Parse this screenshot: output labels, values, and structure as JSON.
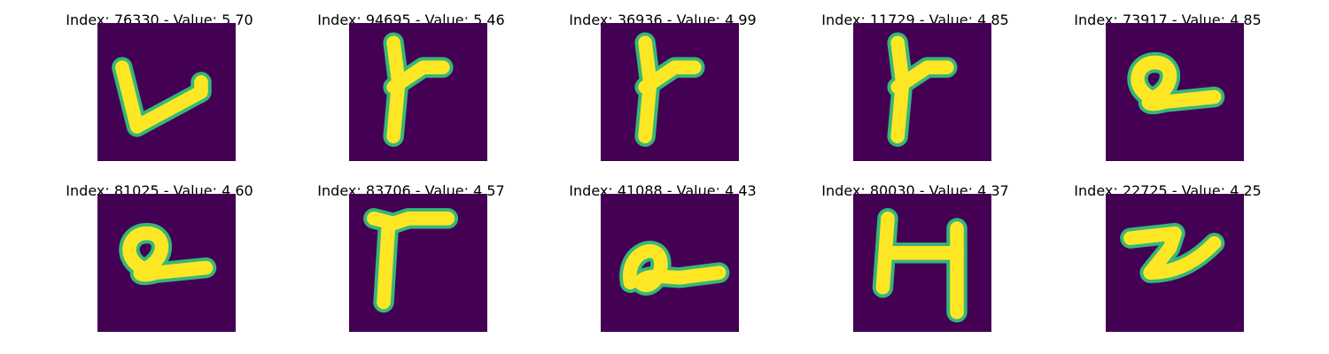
{
  "chart_data": {
    "type": "image-grid",
    "colors": {
      "background": "#440154",
      "stroke": "#fde725",
      "edge": "#35b779"
    },
    "panels": [
      {
        "title": "Index: 76330 - Value: 5.70",
        "glyph": "v-shape"
      },
      {
        "title": "Index: 94695 - Value: 5.46",
        "glyph": "forked-stroke"
      },
      {
        "title": "Index: 36936 - Value: 4.99",
        "glyph": "forked-stroke"
      },
      {
        "title": "Index: 11729 - Value: 4.85",
        "glyph": "forked-stroke"
      },
      {
        "title": "Index: 73917 - Value: 4.85",
        "glyph": "loop-tail"
      },
      {
        "title": "Index: 81025 - Value: 4.60",
        "glyph": "loop-tail"
      },
      {
        "title": "Index: 83706 - Value: 4.57",
        "glyph": "t-shape"
      },
      {
        "title": "Index: 41088 - Value: 4.43",
        "glyph": "looped-a"
      },
      {
        "title": "Index: 80030 - Value: 4.37",
        "glyph": "h-shape"
      },
      {
        "title": "Index: 22725 - Value: 4.25",
        "glyph": "z-shape"
      }
    ]
  }
}
